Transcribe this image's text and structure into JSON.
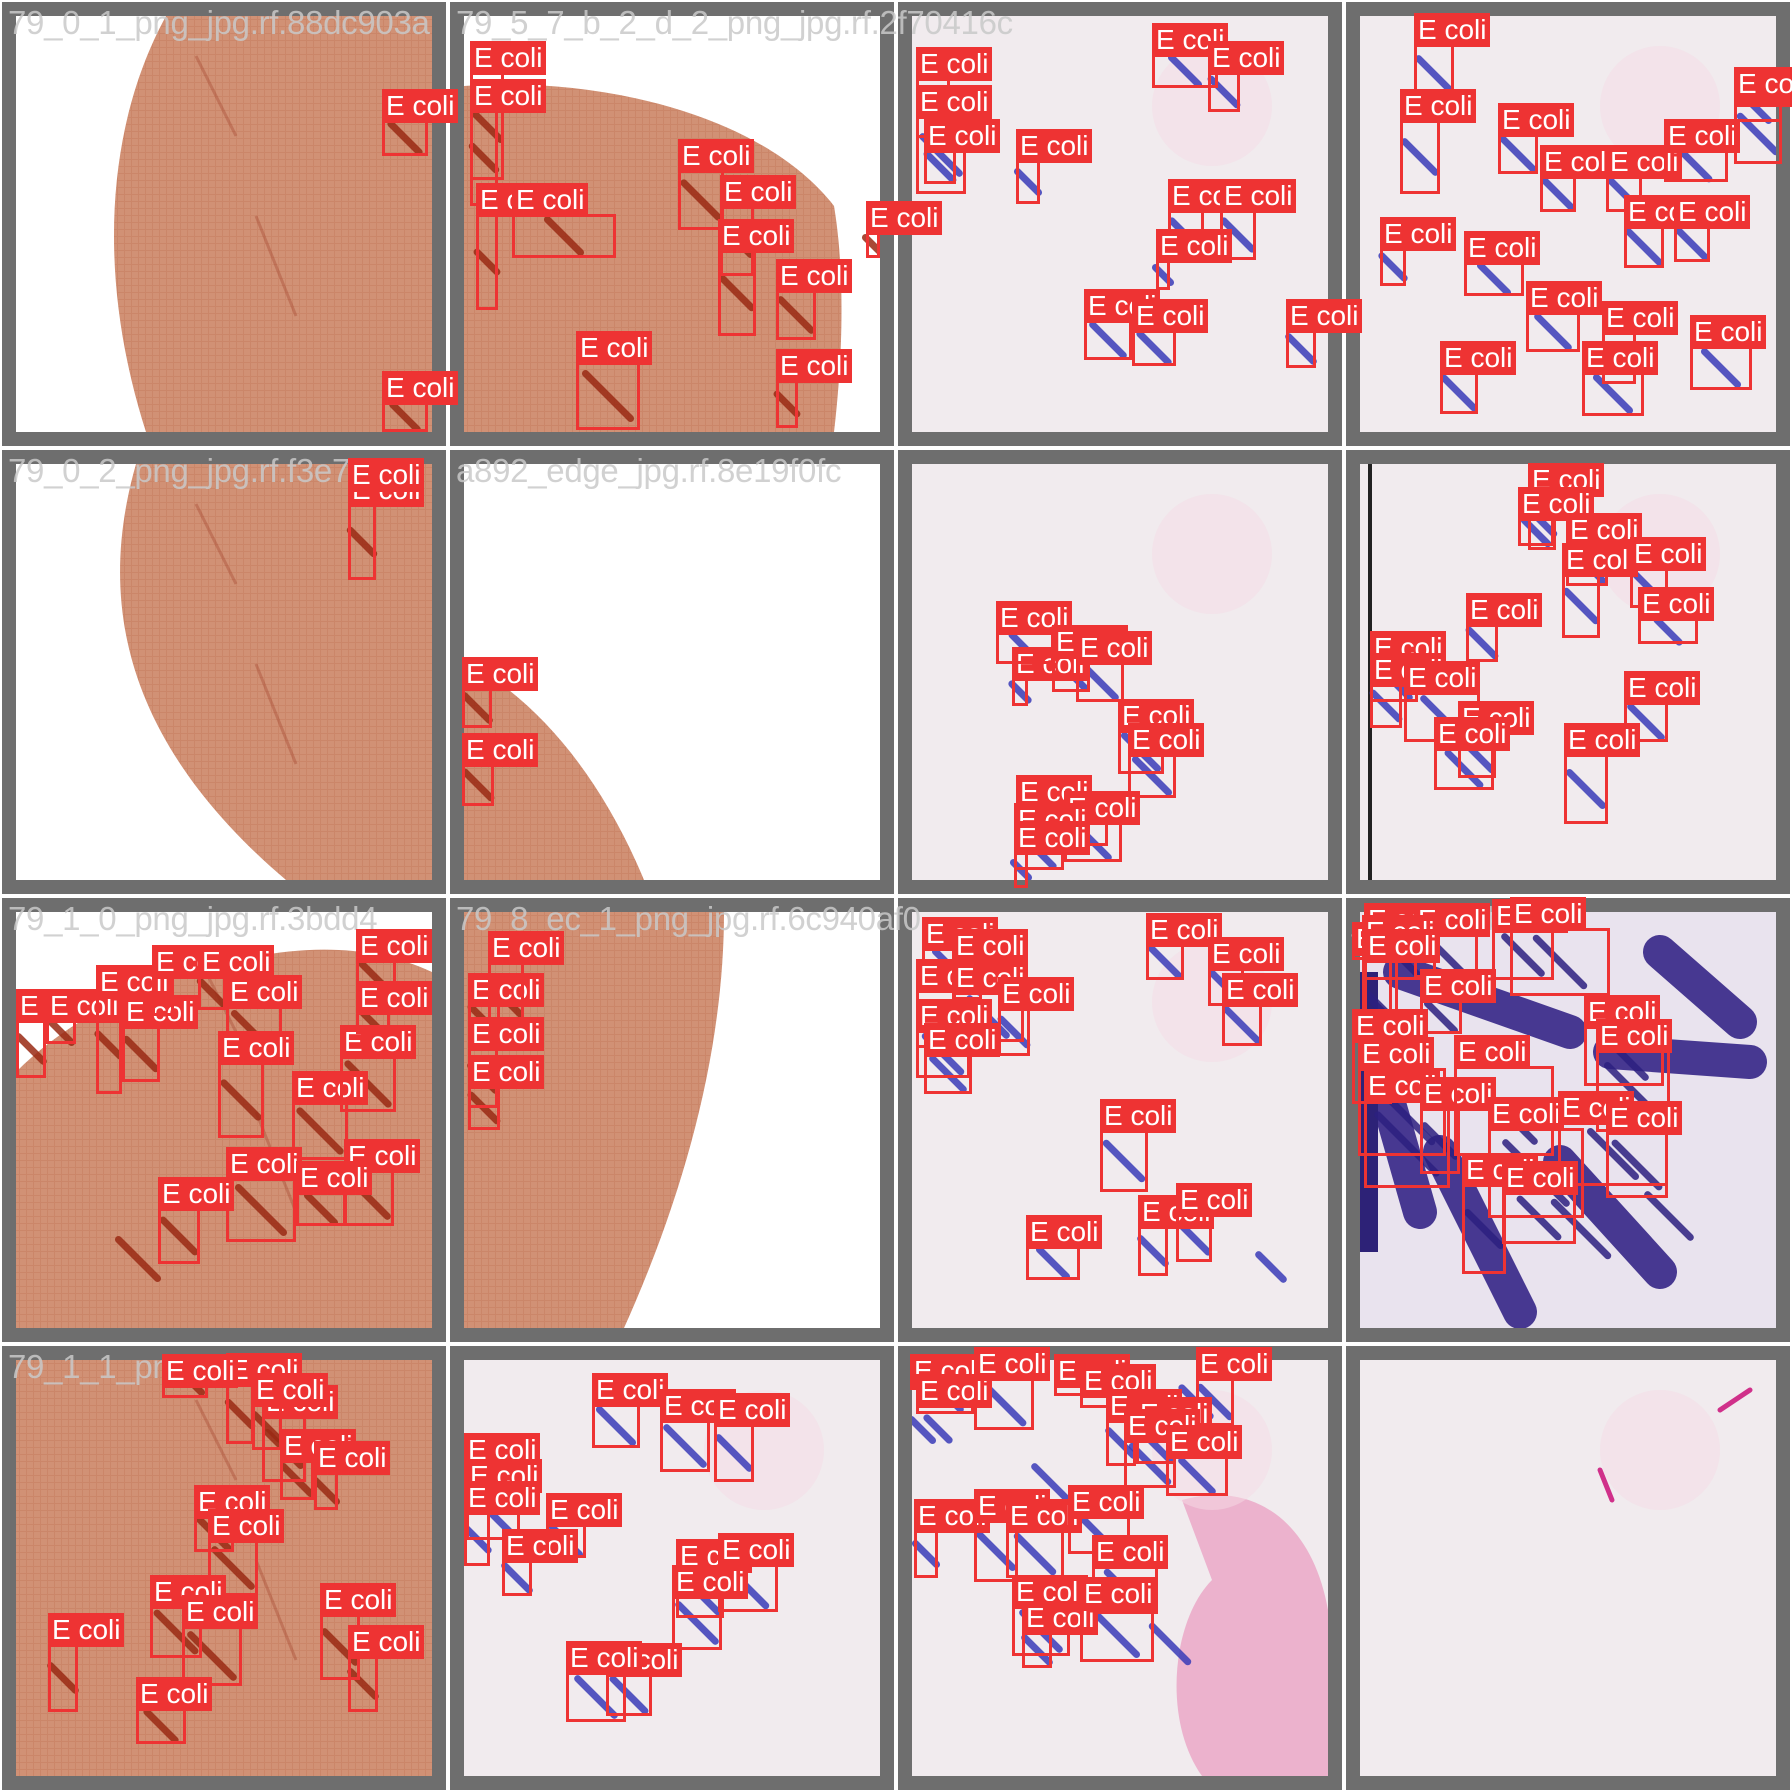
{
  "mosaic": {
    "background_color": "#ffffff",
    "frame_color": "#6e6e6e",
    "box_color": "#ee3333",
    "class_label": "E coli",
    "tiles": [
      {
        "id": "t00",
        "caption": "79_0_1_png_jpg.rf.88dc903a",
        "kind": "paper",
        "labels": [
          "E coli",
          "E coli"
        ]
      },
      {
        "id": "t01",
        "caption": "79_5_7_b_2_d_2_png_jpg.rf.2f70416c",
        "kind": "paper-arc",
        "labels": [
          "E coli",
          "E coli",
          "E coli",
          "E coli",
          "E coli",
          "E coli",
          "E coli",
          "E coli",
          "E coli",
          "E coli",
          "E coli"
        ]
      },
      {
        "id": "t02",
        "caption": "",
        "kind": "slide",
        "labels": [
          "E coli",
          "E coli",
          "E coli",
          "E coli",
          "E coli",
          "E coli",
          "E coli",
          "E coli",
          "E coli",
          "E coli",
          "E coli",
          "E coli"
        ]
      },
      {
        "id": "t03",
        "caption": "",
        "kind": "slide",
        "labels": [
          "E coli",
          "E coli",
          "E coli",
          "E coli",
          "E coli",
          "E coli",
          "E coli",
          "E coli",
          "E coli",
          "E coli",
          "E coli",
          "E coli",
          "E coli",
          "E coli",
          "E coli",
          "E coli",
          "E coli"
        ]
      },
      {
        "id": "t10",
        "caption": "79_0_2_png_jpg.rf.f3e7",
        "kind": "paper",
        "labels": [
          "E coli",
          "E coli"
        ]
      },
      {
        "id": "t11",
        "caption": "a892_edge_jpg.rf.8e19f0fc",
        "kind": "paper-curve",
        "labels": [
          "E coli",
          "E coli"
        ]
      },
      {
        "id": "t12",
        "caption": "",
        "kind": "slide",
        "labels": [
          "E coli",
          "E coli",
          "E coli",
          "E coli",
          "E coli",
          "E coli",
          "E coli",
          "E coli",
          "E coli",
          "E coli"
        ]
      },
      {
        "id": "t13",
        "caption": "",
        "kind": "slide-edge",
        "labels": [
          "E coli",
          "E coli",
          "E coli",
          "E coli",
          "E coli",
          "E coli",
          "E coli",
          "E coli",
          "E coli",
          "E coli",
          "E coli",
          "E coli",
          "E coli",
          "E coli"
        ]
      },
      {
        "id": "t20",
        "caption": "79_1_0_png_jpg.rf.3bdd4",
        "kind": "paper",
        "labels": [
          "E coli",
          "E coli",
          "E coli",
          "E coli",
          "E coli",
          "E coli",
          "E coli",
          "E coli",
          "E coli",
          "E coli",
          "E coli",
          "E coli",
          "E coli",
          "E coli",
          "E coli",
          "E coli"
        ]
      },
      {
        "id": "t21",
        "caption": "79_8_ec_1_png_jpg.rf.6c940af0",
        "kind": "paper-arc2",
        "labels": [
          "E coli",
          "E coli",
          "E coli",
          "E coli"
        ]
      },
      {
        "id": "t22",
        "caption": "",
        "kind": "slide",
        "labels": [
          "E coli",
          "E coli",
          "E coli",
          "E coli",
          "E coli",
          "E coli",
          "E coli",
          "E coli",
          "E coli",
          "E coli",
          "E coli",
          "E coli",
          "E coli",
          "E coli"
        ]
      },
      {
        "id": "t23",
        "caption": "_jpg.rf.38bb441",
        "kind": "zoom",
        "labels": [
          "E coli",
          "E coli",
          "E coli",
          "E coli",
          "E coli",
          "E coli",
          "E coli",
          "E coli",
          "E coli",
          "E coli",
          "E coli",
          "E coli",
          "E coli",
          "E coli",
          "E coli",
          "E coli",
          "E coli",
          "E coli",
          "E coli",
          "E coli"
        ]
      },
      {
        "id": "t30",
        "caption": "79_1_1_png_jpg.r",
        "kind": "paper",
        "labels": [
          "E coli",
          "E coli",
          "E coli",
          "E coli",
          "E coli",
          "E coli",
          "E coli",
          "E coli",
          "E coli",
          "E coli",
          "E coli",
          "E coli",
          "E coli",
          "E coli"
        ]
      },
      {
        "id": "t31",
        "caption": "",
        "kind": "slide",
        "labels": [
          "E coli",
          "E coli",
          "E coli",
          "E coli",
          "E coli",
          "E coli",
          "E coli",
          "E coli",
          "E coli",
          "E coli",
          "E coli",
          "E coli",
          "E coli"
        ]
      },
      {
        "id": "t32",
        "caption": "",
        "kind": "slide-stain",
        "labels": [
          "E coli",
          "E coli",
          "E coli",
          "E coli",
          "E coli",
          "E coli",
          "E coli",
          "E coli",
          "E coli",
          "E coli",
          "E coli",
          "E coli",
          "E coli",
          "E coli",
          "E coli",
          "E coli",
          "E coli",
          "E coli"
        ]
      },
      {
        "id": "t33",
        "caption": "",
        "kind": "slide",
        "labels": []
      }
    ]
  }
}
